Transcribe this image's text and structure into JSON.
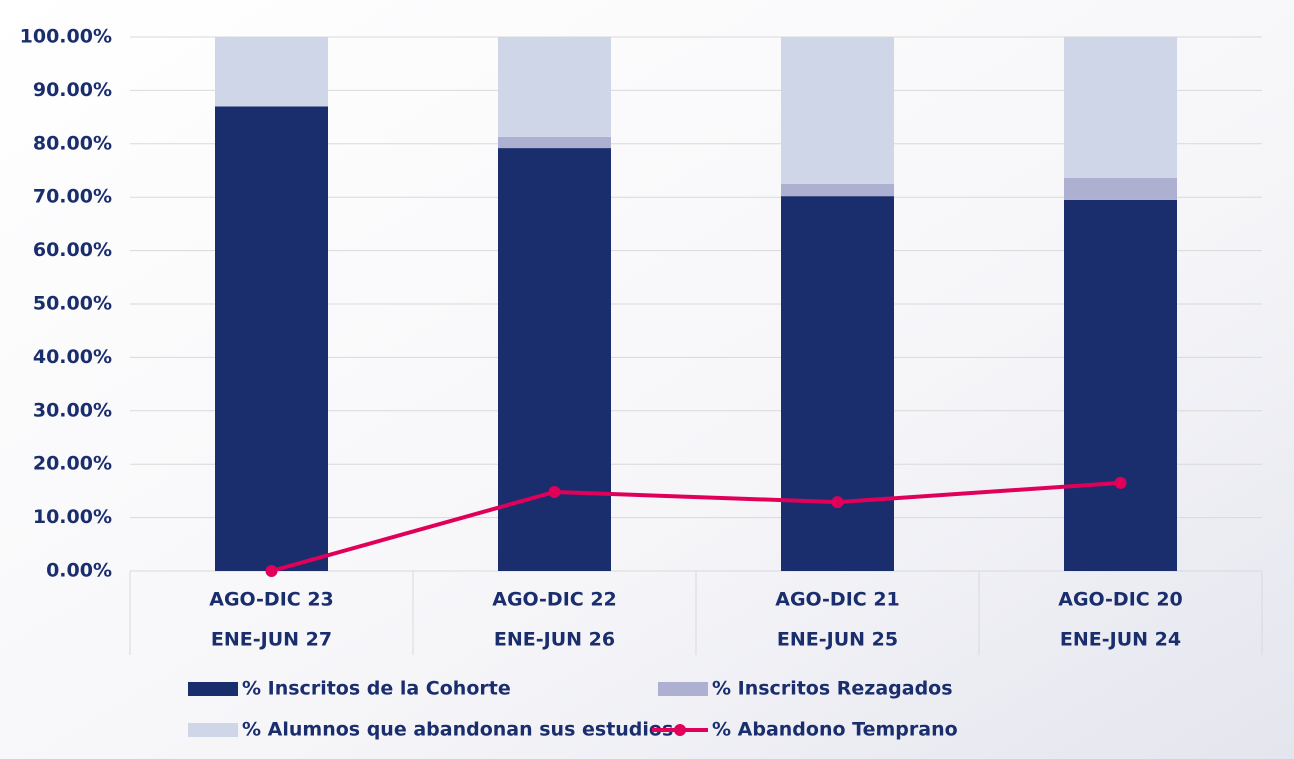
{
  "chart_data": {
    "type": "bar",
    "stacked": true,
    "categories": [
      [
        "AGO-DIC 23",
        "ENE-JUN 27"
      ],
      [
        "AGO-DIC 22",
        "ENE-JUN 26"
      ],
      [
        "AGO-DIC 21",
        "ENE-JUN 25"
      ],
      [
        "AGO-DIC 20",
        "ENE-JUN 24"
      ]
    ],
    "series": [
      {
        "name": "% Inscritos de la Cohorte",
        "color": "#1a2e6e",
        "values": [
          87,
          79.2,
          70.2,
          69.5
        ]
      },
      {
        "name": "% Inscritos Rezagados",
        "color": "#aeb0d2",
        "values": [
          0,
          2.1,
          2.3,
          4.1
        ]
      },
      {
        "name": "% Alumnos que abandonan sus estudios",
        "color": "#cfd6e8",
        "values": [
          13,
          18.7,
          27.5,
          26.4
        ]
      },
      {
        "name": "% Abandono Temprano",
        "color": "#e0005a",
        "type": "line",
        "values": [
          0,
          14.8,
          12.9,
          16.5
        ]
      }
    ],
    "ylim": [
      0,
      100
    ],
    "yticks": [
      {
        "value": 0,
        "label": "0.00%"
      },
      {
        "value": 10,
        "label": "10.00%"
      },
      {
        "value": 20,
        "label": "20.00%"
      },
      {
        "value": 30,
        "label": "30.00%"
      },
      {
        "value": 40,
        "label": "40.00%"
      },
      {
        "value": 50,
        "label": "50.00%"
      },
      {
        "value": 60,
        "label": "60.00%"
      },
      {
        "value": 70,
        "label": "70.00%"
      },
      {
        "value": 80,
        "label": "80.00%"
      },
      {
        "value": 90,
        "label": "90.00%"
      },
      {
        "value": 100,
        "label": "100.00%"
      }
    ],
    "grid": true,
    "legend": "bottom"
  }
}
